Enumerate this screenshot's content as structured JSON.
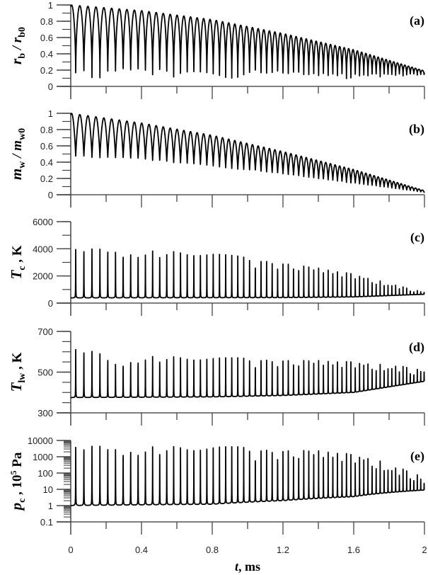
{
  "chart_data": {
    "type": "line",
    "xlabel": {
      "main": "t",
      "rest": ", ms"
    },
    "xlim": [
      0,
      2
    ],
    "x_ticks": [
      0,
      0.4,
      0.8,
      1.2,
      1.6,
      2
    ],
    "x_tick_labels": [
      "0",
      "0.4",
      "0.8",
      "1.2",
      "1.6",
      "2"
    ],
    "cycles_approx": 60,
    "panels": [
      {
        "id": "a",
        "letter": "(a)",
        "ylabel": {
          "main": "r",
          "sub": "b",
          "mid": " / r",
          "sub2": "b0"
        },
        "scale": "linear",
        "ylim": [
          0,
          1
        ],
        "major": [
          0,
          0.2,
          0.4,
          0.6,
          0.8,
          1
        ],
        "major_labels": [
          "0",
          "0.2",
          "0.4",
          "0.6",
          "0.8",
          "1"
        ],
        "minor_step": 0.1,
        "shape": "collapse",
        "max_envelope": [
          [
            0,
            1
          ],
          [
            0.4,
            0.93
          ],
          [
            0.8,
            0.82
          ],
          [
            1.2,
            0.65
          ],
          [
            1.6,
            0.45
          ],
          [
            2,
            0.19
          ]
        ],
        "min_envelope": [
          [
            0,
            0.08
          ],
          [
            1.6,
            0.09
          ],
          [
            2,
            0.14
          ]
        ]
      },
      {
        "id": "b",
        "letter": "(b)",
        "ylabel": {
          "main": "m",
          "sub": "w",
          "mid": " / m",
          "sub2": "w0"
        },
        "scale": "linear",
        "ylim": [
          0,
          1
        ],
        "major": [
          0,
          0.2,
          0.4,
          0.6,
          0.8,
          1
        ],
        "major_labels": [
          "0",
          "0.2",
          "0.4",
          "0.6",
          "0.8",
          "1"
        ],
        "minor_step": 0.1,
        "shape": "wave",
        "max_envelope": [
          [
            0,
            1
          ],
          [
            0.4,
            0.88
          ],
          [
            0.8,
            0.73
          ],
          [
            1.2,
            0.53
          ],
          [
            1.6,
            0.31
          ],
          [
            2,
            0.05
          ]
        ],
        "min_envelope": [
          [
            0,
            0.47
          ],
          [
            0.4,
            0.43
          ],
          [
            0.8,
            0.35
          ],
          [
            1.2,
            0.25
          ],
          [
            1.6,
            0.14
          ],
          [
            2,
            0.03
          ]
        ]
      },
      {
        "id": "c",
        "letter": "(c)",
        "ylabel": {
          "main": "T",
          "sub": "c",
          "mid": " , K",
          "sub2": ""
        },
        "scale": "linear",
        "ylim": [
          0,
          6000
        ],
        "major": [
          0,
          2000,
          4000,
          6000
        ],
        "major_labels": [
          "0",
          "2000",
          "4000",
          "6000"
        ],
        "minor_step": 1000,
        "shape": "spike",
        "max_envelope": [
          [
            0,
            4400
          ],
          [
            0.4,
            4250
          ],
          [
            0.8,
            4000
          ],
          [
            1.2,
            3400
          ],
          [
            1.6,
            2300
          ],
          [
            2,
            800
          ]
        ],
        "min_envelope": [
          [
            0,
            380
          ],
          [
            1.2,
            400
          ],
          [
            1.6,
            450
          ],
          [
            2,
            650
          ]
        ]
      },
      {
        "id": "d",
        "letter": "(d)",
        "ylabel": {
          "main": "T",
          "sub": "lw",
          "mid": " , K",
          "sub2": ""
        },
        "scale": "linear",
        "ylim": [
          300,
          700
        ],
        "major": [
          300,
          500,
          700
        ],
        "major_labels": [
          "300",
          "500",
          "700"
        ],
        "minor_step": 50,
        "shape": "spike",
        "max_envelope": [
          [
            0,
            645
          ],
          [
            0.15,
            620
          ],
          [
            0.25,
            565
          ],
          [
            0.4,
            600
          ],
          [
            0.8,
            590
          ],
          [
            1.2,
            590
          ],
          [
            1.6,
            565
          ],
          [
            1.9,
            535
          ],
          [
            2,
            510
          ]
        ],
        "min_envelope": [
          [
            0,
            375
          ],
          [
            0.8,
            378
          ],
          [
            1.2,
            385
          ],
          [
            1.6,
            400
          ],
          [
            2,
            455
          ]
        ]
      },
      {
        "id": "e",
        "letter": "(e)",
        "ylabel": {
          "main": "p",
          "sub": "c",
          "mid": " , 10",
          "sup": "5",
          "rest": " Pa"
        },
        "scale": "log",
        "ylim": [
          0.1,
          10000
        ],
        "major": [
          0.1,
          1,
          10,
          100,
          1000,
          10000
        ],
        "major_labels": [
          "0.1",
          "1",
          "10",
          "100",
          "1000",
          "10000"
        ],
        "shape": "spike",
        "max_envelope": [
          [
            0,
            12000
          ],
          [
            1.2,
            10000
          ],
          [
            1.4,
            6000
          ],
          [
            1.6,
            2500
          ],
          [
            1.8,
            400
          ],
          [
            2,
            25
          ]
        ],
        "min_envelope": [
          [
            0,
            1
          ],
          [
            0.8,
            1.2
          ],
          [
            1.2,
            2
          ],
          [
            1.6,
            3.5
          ],
          [
            2,
            9
          ]
        ]
      }
    ]
  }
}
